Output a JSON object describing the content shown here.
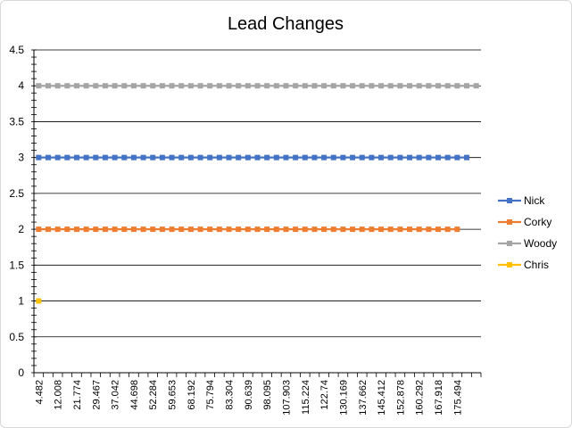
{
  "chart_data": {
    "type": "line",
    "title": "Lead Changes",
    "xlabel": "",
    "ylabel": "",
    "ylim": [
      0,
      4.5
    ],
    "y_ticks": [
      "0",
      "0.5",
      "1",
      "1.5",
      "2",
      "2.5",
      "3",
      "3.5",
      "4",
      "4.5"
    ],
    "x_tick_labels": [
      "4.482",
      "12.008",
      "21.774",
      "29.467",
      "37.042",
      "44.698",
      "52.284",
      "59.653",
      "68.192",
      "75.794",
      "83.304",
      "90.639",
      "98.095",
      "107.903",
      "115.224",
      "122.74",
      "130.169",
      "137.662",
      "145.412",
      "152.878",
      "160.292",
      "167.918",
      "175.494"
    ],
    "grid": "horizontal",
    "legend_position": "right",
    "series": [
      {
        "name": "Nick",
        "color": "#4472C4",
        "value": 3,
        "point_count": 46
      },
      {
        "name": "Corky",
        "color": "#ED7D31",
        "value": 2,
        "point_count": 45
      },
      {
        "name": "Woody",
        "color": "#A5A5A5",
        "value": 4,
        "point_count": 47
      },
      {
        "name": "Chris",
        "color": "#FFC000",
        "value": 1,
        "point_count": 1
      }
    ]
  }
}
